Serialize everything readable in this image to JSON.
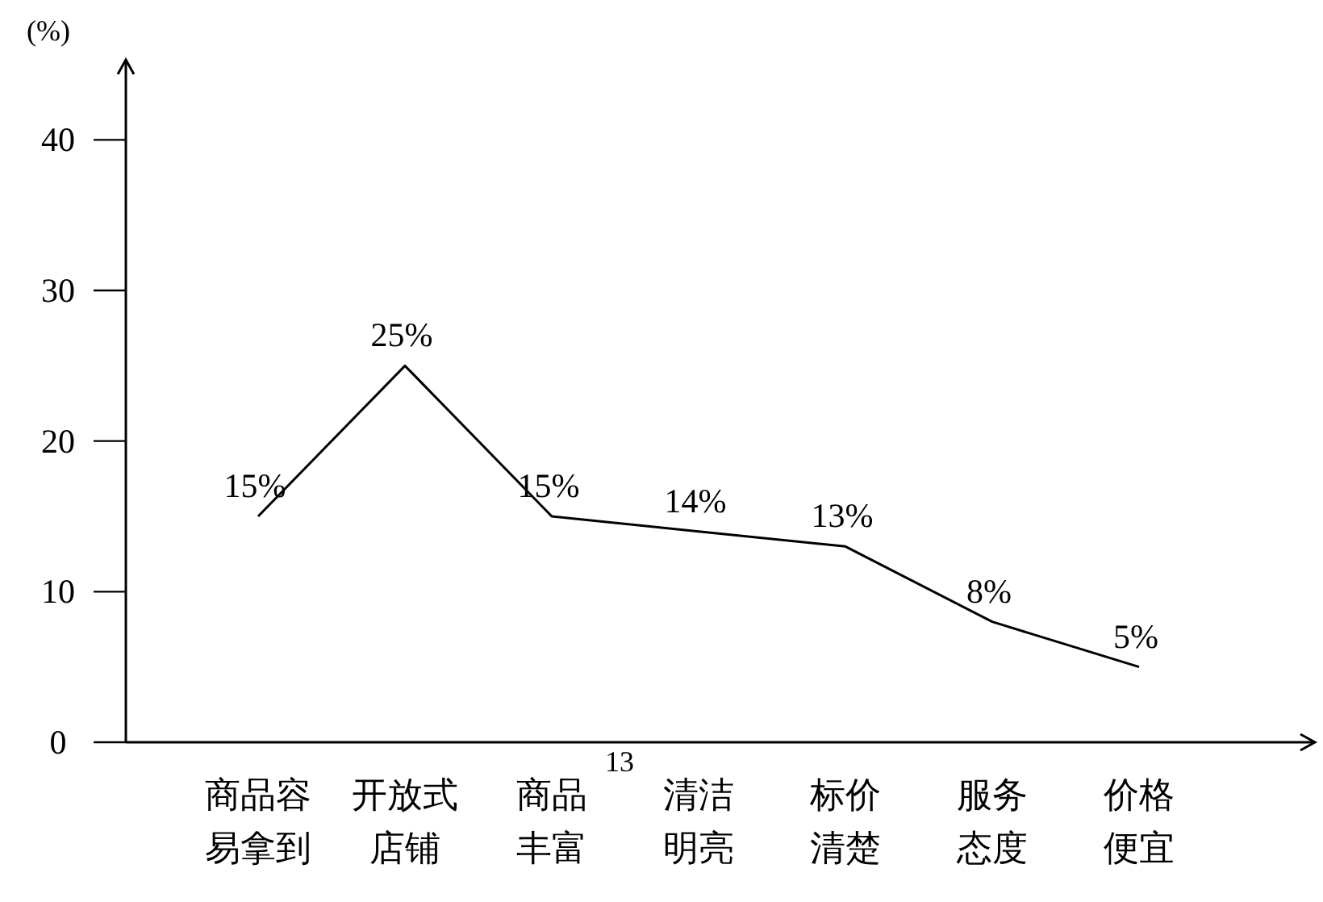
{
  "chart_data": {
    "type": "line",
    "ylabel": "(%)",
    "categories": [
      "商品容易拿到",
      "开放式店铺",
      "商品丰富",
      "清洁明亮",
      "标价清楚",
      "服务态度",
      "价格便宜"
    ],
    "values": [
      15,
      25,
      15,
      14,
      13,
      8,
      5
    ],
    "value_labels": [
      "15%",
      "25%",
      "15%",
      "14%",
      "13%",
      "8%",
      "5%"
    ],
    "color": "#000000",
    "ylim": [
      0,
      45
    ],
    "yticks": [
      0,
      10,
      20,
      30,
      40
    ],
    "grid": false,
    "marker": "none",
    "line_style": "solid",
    "annotations": [
      "13"
    ]
  }
}
